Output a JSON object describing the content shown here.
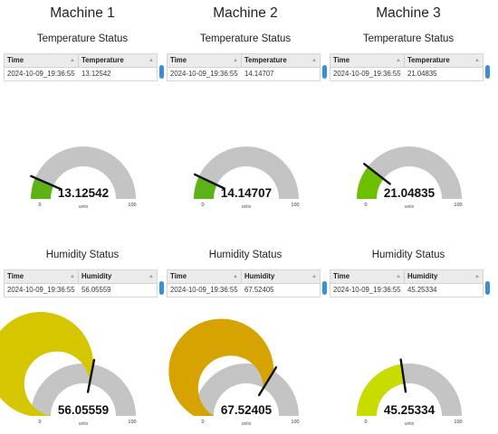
{
  "machines": [
    {
      "title": "Machine 1",
      "temperature": {
        "section_title": "Temperature Status",
        "col_time": "Time",
        "col_value": "Temperature",
        "time": "2024-10-09_19:36:55",
        "value": "13.12542",
        "gauge": {
          "value": 13.12542,
          "label": "13.12542",
          "min": "0",
          "max": "100",
          "unit": "units",
          "min_value": 0,
          "max_value": 100,
          "color": "#5cb318"
        }
      },
      "humidity": {
        "section_title": "Humidity Status",
        "col_time": "Time",
        "col_value": "Humidity",
        "time": "2024-10-09_19:36:55",
        "value": "56.05559",
        "gauge": {
          "value": 56.05559,
          "label": "56.05559",
          "min": "0",
          "max": "100",
          "unit": "units",
          "min_value": 0,
          "max_value": 100,
          "color": "#d6c600"
        }
      }
    },
    {
      "title": "Machine 2",
      "temperature": {
        "section_title": "Temperature Status",
        "col_time": "Time",
        "col_value": "Temperature",
        "time": "2024-10-09_19:36:55",
        "value": "14.14707",
        "gauge": {
          "value": 14.14707,
          "label": "14.14707",
          "min": "0",
          "max": "100",
          "unit": "units",
          "min_value": 0,
          "max_value": 100,
          "color": "#5cb318"
        }
      },
      "humidity": {
        "section_title": "Humidity Status",
        "col_time": "Time",
        "col_value": "Humidity",
        "time": "2024-10-09_19:36:55",
        "value": "67.52405",
        "gauge": {
          "value": 67.52405,
          "label": "67.52405",
          "min": "0",
          "max": "100",
          "unit": "units",
          "min_value": 0,
          "max_value": 100,
          "color": "#d6a300"
        }
      }
    },
    {
      "title": "Machine 3",
      "temperature": {
        "section_title": "Temperature Status",
        "col_time": "Time",
        "col_value": "Temperature",
        "time": "2024-10-09_19:36:55",
        "value": "21.04835",
        "gauge": {
          "value": 21.04835,
          "label": "21.04835",
          "min": "0",
          "max": "100",
          "unit": "units",
          "min_value": 0,
          "max_value": 100,
          "color": "#6cc000"
        }
      },
      "humidity": {
        "section_title": "Humidity Status",
        "col_time": "Time",
        "col_value": "Humidity",
        "time": "2024-10-09_19:36:55",
        "value": "45.25334",
        "gauge": {
          "value": 45.25334,
          "label": "45.25334",
          "min": "0",
          "max": "100",
          "unit": "units",
          "min_value": 0,
          "max_value": 100,
          "color": "#c8dc00"
        }
      }
    }
  ],
  "colors": {
    "gauge_track": "#c4c4c4",
    "needle": "#111111",
    "scroll_handle": "#3b8fd6"
  }
}
